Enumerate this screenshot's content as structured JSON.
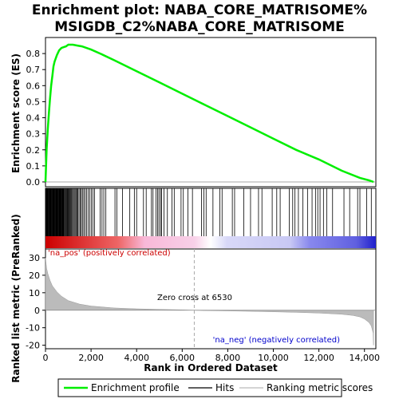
{
  "chart_data": {
    "type": "line",
    "title": [
      "Enrichment plot: NABA_CORE_MATRISOME%",
      "MSIGDB_C2%NABA_CORE_MATRISOME"
    ],
    "xlabel": "Rank in Ordered Dataset",
    "ylabel_top": "Enrichment score (ES)",
    "ylabel_bottom": "Ranked list metric (PreRanked)",
    "xlim": [
      0,
      14500
    ],
    "x_ticks": [
      0,
      2000,
      4000,
      6000,
      8000,
      10000,
      12000,
      14000
    ],
    "x_tick_labels": [
      "0",
      "2,000",
      "4,000",
      "6,000",
      "8,000",
      "10,000",
      "12,000",
      "14,000"
    ],
    "es_ylim": [
      -0.03,
      0.9
    ],
    "es_ticks": [
      0.0,
      0.1,
      0.2,
      0.3,
      0.4,
      0.5,
      0.6,
      0.7,
      0.8
    ],
    "es_tick_labels": [
      "0.0",
      "0.1",
      "0.2",
      "0.3",
      "0.4",
      "0.5",
      "0.6",
      "0.7",
      "0.8"
    ],
    "metric_ylim": [
      -22,
      35
    ],
    "metric_ticks": [
      30,
      20,
      10,
      0,
      -10,
      -20
    ],
    "metric_tick_labels": [
      "30",
      "20",
      "10",
      "0",
      "-10",
      "-20"
    ],
    "enrichment_profile": {
      "name": "Enrichment profile",
      "color": "#00ee00",
      "x": [
        0,
        50,
        100,
        150,
        200,
        250,
        300,
        350,
        400,
        500,
        600,
        700,
        800,
        900,
        1000,
        1200,
        1400,
        1600,
        2000,
        2400,
        3000,
        4000,
        5000,
        6000,
        7000,
        8000,
        9000,
        10000,
        11000,
        12000,
        13000,
        13800,
        14200,
        14400
      ],
      "y": [
        0.0,
        0.2,
        0.33,
        0.43,
        0.52,
        0.6,
        0.66,
        0.72,
        0.75,
        0.79,
        0.82,
        0.835,
        0.84,
        0.845,
        0.855,
        0.855,
        0.85,
        0.845,
        0.825,
        0.8,
        0.76,
        0.69,
        0.62,
        0.55,
        0.48,
        0.41,
        0.34,
        0.27,
        0.2,
        0.14,
        0.07,
        0.025,
        0.01,
        0.0
      ]
    },
    "hits": [
      10,
      20,
      40,
      60,
      80,
      100,
      120,
      140,
      160,
      180,
      200,
      220,
      240,
      260,
      280,
      300,
      320,
      340,
      360,
      380,
      400,
      420,
      440,
      460,
      480,
      500,
      520,
      540,
      560,
      580,
      600,
      620,
      640,
      660,
      680,
      700,
      720,
      740,
      760,
      780,
      800,
      830,
      860,
      890,
      920,
      950,
      980,
      1010,
      1040,
      1070,
      1100,
      1140,
      1180,
      1220,
      1260,
      1300,
      1340,
      1380,
      1420,
      1470,
      1520,
      1570,
      1620,
      1680,
      1740,
      1800,
      1870,
      1940,
      2010,
      2080,
      2150,
      2400,
      2480,
      2560,
      2650,
      3050,
      3130,
      3380,
      3700,
      3900,
      4000,
      4300,
      4420,
      4650,
      4720,
      4850,
      4920,
      4980,
      5050,
      5100,
      5200,
      5350,
      5550,
      5650,
      5950,
      6050,
      6250,
      6450,
      6850,
      6950,
      7050,
      7350,
      7650,
      7750,
      8200,
      8300,
      8700,
      9000,
      9350,
      9500,
      9950,
      10150,
      10300,
      10700,
      10850,
      10950,
      11100,
      11300,
      11500,
      11700,
      11850,
      11950,
      12050,
      12200,
      12350,
      12600,
      13100,
      13350,
      13700,
      13800,
      14100,
      14300
    ],
    "metric": {
      "name": "Ranking metric scores",
      "x": [
        0,
        50,
        100,
        200,
        300,
        500,
        700,
        1000,
        1500,
        2000,
        3000,
        4000,
        5000,
        6000,
        6530,
        7000,
        8000,
        9000,
        10000,
        11000,
        12000,
        13000,
        13500,
        13800,
        14000,
        14200,
        14300,
        14380,
        14400
      ],
      "y": [
        30,
        24,
        21,
        17,
        14,
        10.5,
        8,
        5.5,
        3.5,
        2.4,
        1.3,
        0.8,
        0.5,
        0.2,
        0,
        -0.2,
        -0.4,
        -0.6,
        -0.9,
        -1.2,
        -1.6,
        -2.3,
        -3,
        -3.8,
        -5,
        -7,
        -9,
        -13,
        -20
      ]
    },
    "zero_cross_label": "Zero cross at 6530",
    "zero_cross_x": 6530,
    "pos_label": "'na_pos' (positively correlated)",
    "neg_label": "'na_neg' (negatively correlated)",
    "legend": [
      "Enrichment profile",
      "Hits",
      "Ranking metric scores"
    ],
    "colors": {
      "es_line": "#00ee00",
      "hits": "#000000",
      "metric_fill": "#bbbbbb",
      "zero_line": "#aaaaaa",
      "pos_text": "#cc0000",
      "neg_text": "#0000cc"
    }
  }
}
